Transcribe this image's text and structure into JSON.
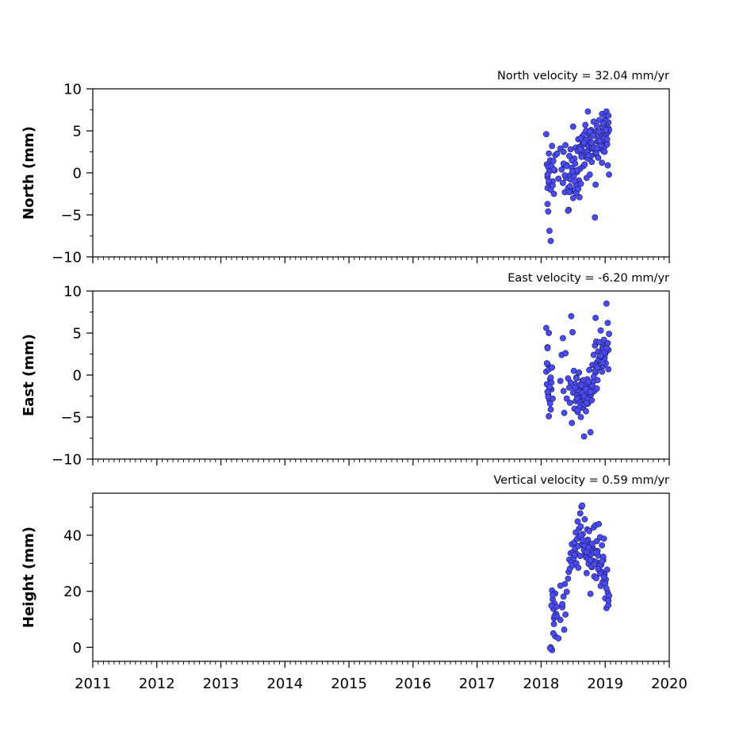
{
  "chart_data": [
    {
      "type": "scatter",
      "title": "North velocity = 32.04 mm/yr",
      "ylabel": "North (mm)",
      "xlim": [
        2011,
        2020
      ],
      "ylim": [
        -10,
        10
      ],
      "yticks": [
        10,
        5,
        0,
        -5,
        -10
      ],
      "ytick_labels": [
        "10",
        "5",
        "0",
        "−5",
        "−10"
      ],
      "marker_color": "#4b4bf2",
      "series": [
        {
          "x": [
            2018.08,
            2018.09,
            2018.1,
            2018.1,
            2018.11,
            2018.12,
            2018.12,
            2018.13,
            2018.14,
            2018.15,
            2018.16,
            2018.17,
            2018.18,
            2018.19,
            2018.2,
            2018.21,
            2018.22,
            2018.1,
            2018.11,
            2018.13,
            2018.15,
            2018.18,
            2018.2,
            2018.1,
            2018.12,
            2018.3,
            2018.32,
            2018.34,
            2018.35,
            2018.36,
            2018.37,
            2018.38,
            2018.39,
            2018.4,
            2018.42,
            2018.43,
            2018.44,
            2018.45,
            2018.46,
            2018.47,
            2018.48,
            2018.5,
            2018.51,
            2018.52,
            2018.53,
            2018.54,
            2018.55,
            2018.56,
            2018.57,
            2018.58,
            2018.59,
            2018.6,
            2018.61,
            2018.62,
            2018.63,
            2018.64,
            2018.65,
            2018.66,
            2018.67,
            2018.68,
            2018.69,
            2018.7,
            2018.71,
            2018.72,
            2018.73,
            2018.74,
            2018.75,
            2018.76,
            2018.77,
            2018.78,
            2018.79,
            2018.8,
            2018.81,
            2018.82,
            2018.83,
            2018.84,
            2018.85,
            2018.86,
            2018.87,
            2018.88,
            2018.89,
            2018.9,
            2018.91,
            2018.92,
            2018.93,
            2018.94,
            2018.95,
            2018.96,
            2018.97,
            2018.98,
            2018.99,
            2019.0,
            2019.01,
            2019.02,
            2019.03,
            2019.04,
            2019.05,
            2019.06,
            2018.46,
            2018.48,
            2018.55,
            2018.58,
            2018.6,
            2018.62,
            2018.64,
            2018.66,
            2018.68,
            2018.7,
            2018.72,
            2018.75,
            2018.78,
            2018.8,
            2018.82,
            2018.85,
            2018.88,
            2018.9,
            2018.93,
            2018.96,
            2018.98,
            2019.0,
            2019.02,
            2019.04,
            2019.05,
            2018.42,
            2018.44,
            2018.6,
            2018.85,
            2018.25,
            2018.27,
            2018.5,
            2018.53,
            2018.56,
            2018.73,
            2018.76,
            2018.79,
            2018.83,
            2018.86,
            2018.95,
            2019.03,
            2019.06,
            2018.61,
            2018.63,
            2018.67,
            2018.69,
            2018.74,
            2018.81,
            2018.87,
            2018.91,
            2018.97,
            2018.99,
            2019.01,
            2019.03,
            2019.05,
            2018.35,
            2018.37,
            2018.4,
            2018.45,
            2018.49,
            2018.52
          ],
          "y": [
            4.6,
            1.0,
            -0.5,
            -1.8,
            0.7,
            2.3,
            -1.2,
            0.2,
            1.5,
            -2.0,
            0.8,
            3.2,
            -1.0,
            1.4,
            -2.5,
            0.3,
            2.1,
            -3.7,
            -4.6,
            -6.9,
            -8.1,
            -1.5,
            0.4,
            -0.2,
            -1.0,
            2.9,
            0.4,
            -1.2,
            2.5,
            1.0,
            -2.3,
            3.3,
            -0.6,
            0.9,
            -1.8,
            -4.4,
            2.0,
            -0.3,
            2.8,
            -2.2,
            0.6,
            5.5,
            -0.4,
            1.7,
            -2.0,
            3.0,
            -1.4,
            0.1,
            2.6,
            4.0,
            -0.9,
            3.1,
            0.5,
            -1.3,
            2.2,
            4.3,
            3.5,
            0.8,
            4.6,
            2.4,
            1.9,
            5.0,
            -0.6,
            3.3,
            7.3,
            2.7,
            4.1,
            -0.2,
            3.6,
            5.1,
            1.3,
            2.9,
            4.4,
            6.1,
            3.0,
            -5.3,
            4.9,
            2.2,
            5.6,
            3.7,
            1.8,
            4.2,
            6.3,
            2.9,
            3.5,
            5.0,
            7.0,
            4.3,
            2.6,
            5.8,
            3.1,
            6.7,
            4.5,
            7.3,
            5.2,
            0.9,
            6.0,
            -0.2,
            -0.8,
            1.5,
            -2.4,
            -1.9,
            3.0,
            4.1,
            2.7,
            3.4,
            1.0,
            3.9,
            2.5,
            4.7,
            2.0,
            3.1,
            4.6,
            2.4,
            3.8,
            4.9,
            3.3,
            5.5,
            4.1,
            6.2,
            3.6,
            4.8,
            5.3,
            -4.5,
            -2.3,
            -2.9,
            -1.4,
            2.3,
            -0.7,
            -3.0,
            1.1,
            0.3,
            1.7,
            4.9,
            3.6,
            3.0,
            2.4,
            1.2,
            3.4,
            5.1,
            2.8,
            1.9,
            3.6,
            5.7,
            2.1,
            4.4,
            2.9,
            3.8,
            5.9,
            2.5,
            5.1,
            4.0,
            6.8,
            1.1,
            -0.3,
            0.8,
            -1.6,
            0.2,
            -1.0
          ]
        }
      ]
    },
    {
      "type": "scatter",
      "title": "East velocity = -6.20 mm/yr",
      "ylabel": "East (mm)",
      "xlim": [
        2011,
        2020
      ],
      "ylim": [
        -10,
        10
      ],
      "yticks": [
        10,
        5,
        0,
        -5,
        -10
      ],
      "ytick_labels": [
        "10",
        "5",
        "0",
        "−5",
        "−10"
      ],
      "marker_color": "#4b4bf2",
      "series": [
        {
          "x": [
            2018.08,
            2018.09,
            2018.1,
            2018.11,
            2018.12,
            2018.13,
            2018.14,
            2018.15,
            2018.16,
            2018.17,
            2018.18,
            2018.08,
            2018.1,
            2018.12,
            2018.14,
            2018.16,
            2018.09,
            2018.11,
            2018.13,
            2018.15,
            2018.1,
            2018.12,
            2018.3,
            2018.32,
            2018.34,
            2018.35,
            2018.36,
            2018.38,
            2018.4,
            2018.42,
            2018.44,
            2018.45,
            2018.46,
            2018.48,
            2018.5,
            2018.51,
            2018.52,
            2018.53,
            2018.54,
            2018.55,
            2018.56,
            2018.57,
            2018.58,
            2018.59,
            2018.6,
            2018.61,
            2018.62,
            2018.63,
            2018.64,
            2018.65,
            2018.66,
            2018.67,
            2018.68,
            2018.69,
            2018.7,
            2018.71,
            2018.72,
            2018.73,
            2018.74,
            2018.75,
            2018.76,
            2018.77,
            2018.78,
            2018.79,
            2018.8,
            2018.81,
            2018.82,
            2018.83,
            2018.84,
            2018.85,
            2018.86,
            2018.87,
            2018.88,
            2018.89,
            2018.9,
            2018.91,
            2018.92,
            2018.93,
            2018.94,
            2018.95,
            2018.96,
            2018.97,
            2018.98,
            2018.99,
            2019.0,
            2019.01,
            2019.02,
            2019.03,
            2019.04,
            2019.05,
            2019.06,
            2018.47,
            2018.49,
            2018.55,
            2018.58,
            2018.6,
            2018.62,
            2018.64,
            2018.66,
            2018.68,
            2018.7,
            2018.72,
            2018.75,
            2018.78,
            2018.82,
            2018.86,
            2018.9,
            2018.94,
            2018.97,
            2019.0,
            2019.03,
            2019.05,
            2018.53,
            2018.56,
            2018.59,
            2018.63,
            2018.67,
            2018.71,
            2018.74,
            2018.77,
            2018.8,
            2018.84,
            2018.88,
            2018.92,
            2018.96,
            2018.99,
            2019.02,
            2019.04,
            2018.1,
            2018.13,
            2018.57,
            2018.85,
            2018.87,
            2018.93
          ],
          "y": [
            0.4,
            -1.1,
            1.3,
            -2.3,
            0.7,
            -3.0,
            -0.5,
            -4.1,
            -1.7,
            0.9,
            -2.8,
            5.6,
            3.3,
            -4.9,
            -3.4,
            -0.9,
            1.4,
            -2.6,
            -1.5,
            -0.3,
            3.2,
            5.0,
            -0.7,
            2.4,
            4.4,
            -1.9,
            -4.5,
            2.6,
            -2.8,
            -0.4,
            -1.5,
            -3.3,
            -0.9,
            -5.7,
            -2.1,
            0.5,
            -4.0,
            -1.1,
            -3.1,
            -0.3,
            -2.4,
            -4.4,
            -1.8,
            0.3,
            -3.2,
            -1.4,
            -5.0,
            -2.6,
            -0.7,
            -3.9,
            -2.0,
            -7.3,
            -2.9,
            -1.1,
            -4.3,
            -2.2,
            -0.5,
            -3.4,
            -1.5,
            0.6,
            -2.5,
            -6.8,
            -1.0,
            -3.0,
            1.2,
            -0.8,
            2.4,
            -1.9,
            3.5,
            0.3,
            4.0,
            1.5,
            -0.6,
            2.8,
            0.9,
            3.9,
            1.7,
            5.3,
            2.6,
            0.4,
            3.3,
            1.1,
            4.2,
            2.0,
            3.6,
            1.4,
            8.5,
            2.9,
            6.2,
            0.7,
            4.9,
            7.0,
            5.1,
            -0.4,
            -2.7,
            -1.2,
            -3.6,
            -2.1,
            -0.6,
            -3.5,
            -1.7,
            -2.8,
            -1.0,
            -2.3,
            -0.2,
            1.1,
            1.9,
            2.3,
            3.1,
            2.5,
            3.7,
            3.0,
            -1.5,
            -2.8,
            -3.9,
            -1.2,
            -2.5,
            -3.3,
            -0.8,
            -2.0,
            -1.3,
            0.5,
            0.9,
            2.2,
            1.5,
            2.7,
            3.2,
            3.8,
            -2.0,
            -1.4,
            -4.2,
            6.8,
            -1.6,
            2.3
          ]
        }
      ]
    },
    {
      "type": "scatter",
      "title": "Vertical velocity = 0.59 mm/yr",
      "ylabel": "Height (mm)",
      "xlim": [
        2011,
        2020
      ],
      "ylim": [
        -5,
        55
      ],
      "yticks": [
        40,
        20,
        0
      ],
      "ytick_labels": [
        "40",
        "20",
        "0"
      ],
      "xticks": [
        2011,
        2012,
        2013,
        2014,
        2015,
        2016,
        2017,
        2018,
        2019,
        2020
      ],
      "xtick_labels": [
        "2011",
        "2012",
        "2013",
        "2014",
        "2015",
        "2016",
        "2017",
        "2018",
        "2019",
        "2020"
      ],
      "marker_color": "#4b4bf2",
      "series": [
        {
          "x": [
            2018.17,
            2018.18,
            2018.19,
            2018.2,
            2018.21,
            2018.22,
            2018.23,
            2018.18,
            2018.2,
            2018.22,
            2018.17,
            2018.24,
            2018.19,
            2018.21,
            2018.27,
            2018.3,
            2018.33,
            2018.35,
            2018.37,
            2018.3,
            2018.33,
            2018.36,
            2018.38,
            2018.4,
            2018.42,
            2018.43,
            2018.44,
            2018.45,
            2018.46,
            2018.47,
            2018.48,
            2018.49,
            2018.5,
            2018.51,
            2018.52,
            2018.53,
            2018.54,
            2018.55,
            2018.56,
            2018.57,
            2018.58,
            2018.59,
            2018.6,
            2018.61,
            2018.62,
            2018.63,
            2018.64,
            2018.65,
            2018.66,
            2018.67,
            2018.68,
            2018.69,
            2018.7,
            2018.71,
            2018.72,
            2018.73,
            2018.74,
            2018.75,
            2018.76,
            2018.77,
            2018.78,
            2018.79,
            2018.8,
            2018.81,
            2018.82,
            2018.83,
            2018.84,
            2018.85,
            2018.86,
            2018.87,
            2018.88,
            2018.89,
            2018.9,
            2018.91,
            2018.92,
            2018.93,
            2018.94,
            2018.95,
            2018.96,
            2018.97,
            2018.98,
            2018.99,
            2019.0,
            2019.01,
            2019.02,
            2019.03,
            2019.04,
            2019.05,
            2019.06,
            2018.52,
            2018.55,
            2018.58,
            2018.61,
            2018.64,
            2018.67,
            2018.7,
            2018.73,
            2018.76,
            2018.79,
            2018.82,
            2018.85,
            2018.88,
            2018.91,
            2018.94,
            2018.97,
            2019.0,
            2018.62,
            2018.65,
            2018.68,
            2018.71,
            2018.74,
            2018.77,
            2018.8,
            2018.83,
            2018.86,
            2018.89,
            2018.92,
            2018.95,
            2018.98,
            2019.02,
            2019.05,
            2018.15,
            2018.16,
            2018.25,
            2018.14
          ],
          "y": [
            20.3,
            17.1,
            13.8,
            10.4,
            15.6,
            19.2,
            12.0,
            18.7,
            8.3,
            3.9,
            -1.0,
            14.5,
            5.0,
            11.2,
            3.2,
            9.8,
            14.3,
            18.1,
            22.6,
            22.0,
            15.4,
            6.3,
            11.7,
            19.8,
            24.5,
            26.9,
            31.3,
            28.1,
            33.6,
            30.4,
            36.8,
            29.2,
            34.1,
            31.9,
            37.5,
            35.2,
            41.0,
            33.4,
            38.7,
            44.9,
            36.1,
            42.3,
            39.6,
            47.8,
            43.1,
            50.2,
            50.6,
            40.4,
            37.3,
            35.9,
            45.7,
            33.8,
            32.2,
            26.5,
            42.1,
            38.4,
            29.8,
            41.5,
            36.6,
            19.1,
            33.2,
            28.6,
            35.7,
            30.9,
            42.8,
            25.3,
            34.5,
            43.6,
            24.7,
            37.9,
            30.1,
            32.7,
            44.0,
            27.4,
            39.3,
            21.9,
            29.5,
            36.4,
            23.3,
            31.2,
            38.8,
            26.0,
            17.5,
            24.2,
            14.0,
            27.7,
            19.6,
            15.1,
            18.4,
            33.0,
            30.0,
            28.4,
            32.6,
            36.9,
            34.7,
            38.1,
            31.6,
            35.0,
            28.9,
            33.7,
            30.5,
            34.4,
            29.1,
            27.0,
            32.3,
            22.8,
            40.0,
            38.2,
            36.3,
            34.0,
            35.6,
            31.1,
            37.0,
            29.7,
            33.9,
            28.0,
            26.3,
            30.7,
            25.1,
            21.0,
            16.7,
            0.0,
            14.9,
            11.0,
            -0.3
          ]
        }
      ]
    }
  ]
}
